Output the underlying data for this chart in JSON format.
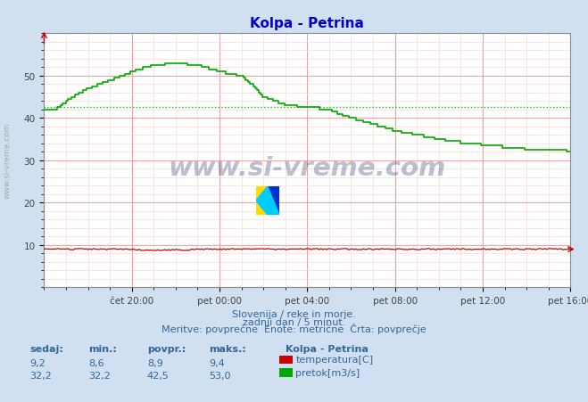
{
  "title": "Kolpa - Petrina",
  "title_color": "#0000cc",
  "bg_color": "#d0e0f0",
  "plot_bg_color": "#ffffff",
  "temp_color": "#cc0000",
  "flow_color": "#00aa00",
  "avg_line_color": "#00cc00",
  "avg_flow": 42.5,
  "x_labels": [
    "čet 20:00",
    "pet 00:00",
    "pet 04:00",
    "pet 08:00",
    "pet 12:00",
    "pet 16:00"
  ],
  "x_tick_pos": [
    4,
    8,
    12,
    16,
    20,
    24
  ],
  "yticks": [
    10,
    20,
    30,
    40,
    50
  ],
  "ylim": [
    0,
    60
  ],
  "xlim": [
    0,
    24
  ],
  "watermark": "www.si-vreme.com",
  "subtitle1": "Slovenija / reke in morje.",
  "subtitle2": "zadnji dan / 5 minut.",
  "subtitle3": "Meritve: povprečne  Enote: metrične  Črta: povprečje",
  "legend_title": "Kolpa - Petrina",
  "legend_items": [
    {
      "label": "temperatura[C]",
      "color": "#cc0000"
    },
    {
      "label": "pretok[m3/s]",
      "color": "#00aa00"
    }
  ],
  "col_headers": [
    "sedaj:",
    "min.:",
    "povpr.:",
    "maks.:"
  ],
  "row_temp": [
    "9,2",
    "8,6",
    "8,9",
    "9,4"
  ],
  "row_flow": [
    "32,2",
    "32,2",
    "42,5",
    "53,0"
  ],
  "grid_major_color": "#ff9999",
  "grid_minor_color": "#ffcccc",
  "text_color": "#336699"
}
